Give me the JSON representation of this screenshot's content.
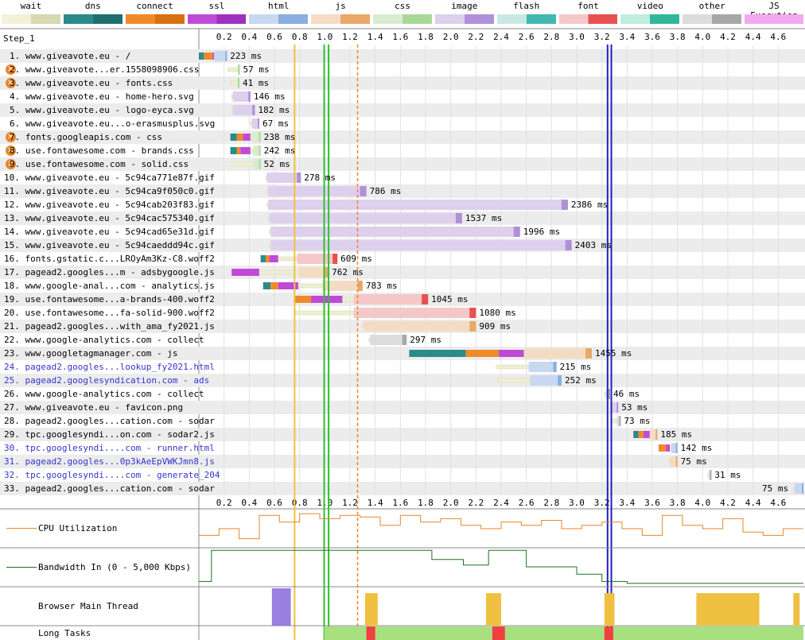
{
  "legend": [
    {
      "name": "wait",
      "label": "wait",
      "color": "#f2f2d8",
      "color2": "#d8d8b0"
    },
    {
      "name": "dns",
      "label": "dns",
      "color": "#2b8a8a",
      "color2": "#1f6f6f"
    },
    {
      "name": "connect",
      "label": "connect",
      "color": "#f08a28",
      "color2": "#d86f10"
    },
    {
      "name": "ssl",
      "label": "ssl",
      "color": "#c04ad8",
      "color2": "#a030c0"
    },
    {
      "name": "html",
      "label": "html",
      "color": "#c8d8f0",
      "color2": "#8aaee0"
    },
    {
      "name": "js",
      "label": "js",
      "color": "#f4dcc4",
      "color2": "#e8a868"
    },
    {
      "name": "css",
      "label": "css",
      "color": "#d8ecd0",
      "color2": "#a8d898"
    },
    {
      "name": "image",
      "label": "image",
      "color": "#ddd0ec",
      "color2": "#b090d8"
    },
    {
      "name": "flash",
      "label": "flash",
      "color": "#c8e8e4",
      "color2": "#40b8b0"
    },
    {
      "name": "font",
      "label": "font",
      "color": "#f4c8c8",
      "color2": "#e85050"
    },
    {
      "name": "video",
      "label": "video",
      "color": "#c0ece0",
      "color2": "#30b898"
    },
    {
      "name": "other",
      "label": "other",
      "color": "#dcdcdc",
      "color2": "#a8a8a8"
    },
    {
      "name": "js-execution",
      "label": "JS Execution",
      "color": "#f4a8f0",
      "color2": "#f4a8f0"
    }
  ],
  "step_title": "Step_1",
  "axis_ticks": [
    "0.2",
    "0.4",
    "0.6",
    "0.8",
    "1.0",
    "1.2",
    "1.4",
    "1.6",
    "1.8",
    "2.0",
    "2.2",
    "2.4",
    "2.6",
    "2.8",
    "3.0",
    "3.2",
    "3.4",
    "3.6",
    "3.8",
    "4.0",
    "4.2",
    "4.4",
    "4.6"
  ],
  "axis_max_s": 4.8,
  "markers": [
    {
      "t": 0.76,
      "color": "#f0c040",
      "style": "solid"
    },
    {
      "t": 0.995,
      "color": "#30c030",
      "style": "solid"
    },
    {
      "t": 1.03,
      "color": "#30c030",
      "style": "solid"
    },
    {
      "t": 1.26,
      "color": "#e8862a",
      "style": "dashed"
    },
    {
      "t": 3.245,
      "color": "#2020c0",
      "style": "solid"
    },
    {
      "t": 3.275,
      "color": "#2020c0",
      "style": "solid"
    }
  ],
  "requests": [
    {
      "label": "1. www.giveavote.eu - /",
      "warn": false,
      "blue": false,
      "type": "html",
      "start": 0.0,
      "dns": 0.04,
      "connect": 0.07,
      "ssl": 0.09,
      "wait": 0.0,
      "dl_start": 0.12,
      "end": 0.223,
      "dur": "223 ms"
    },
    {
      "label": "2. www.giveavote...er.1558098906.css",
      "warn": true,
      "blue": false,
      "type": "css",
      "start": 0.23,
      "wait_end": 0.31,
      "dl_start": 0.31,
      "end": 0.325,
      "dur": "57 ms"
    },
    {
      "label": "3. www.giveavote.eu - fonts.css",
      "warn": true,
      "blue": false,
      "type": "css",
      "start": 0.25,
      "wait_end": 0.31,
      "dl_start": 0.31,
      "end": 0.322,
      "dur": "41 ms"
    },
    {
      "label": "4. www.giveavote.eu - home-hero.svg",
      "warn": false,
      "blue": false,
      "type": "image",
      "start": 0.26,
      "wait_end": 0.27,
      "dl_start": 0.27,
      "end": 0.41,
      "dur": "146 ms"
    },
    {
      "label": "5. www.giveavote.eu - logo-eyca.svg",
      "warn": false,
      "blue": false,
      "type": "image",
      "start": 0.26,
      "wait_end": 0.27,
      "dl_start": 0.27,
      "end": 0.445,
      "dur": "182 ms"
    },
    {
      "label": "6. www.giveavote.eu...o-erasmusplus.svg",
      "warn": false,
      "blue": false,
      "type": "image",
      "start": 0.41,
      "wait_end": 0.42,
      "dl_start": 0.42,
      "end": 0.48,
      "dur": "67 ms"
    },
    {
      "label": "7. fonts.googleapis.com - css",
      "warn": true,
      "blue": false,
      "type": "css",
      "start": 0.25,
      "dns": 0.05,
      "connect": 0.05,
      "ssl": 0.06,
      "wait_end": 0.42,
      "dl_start": 0.42,
      "end": 0.49,
      "dur": "238 ms"
    },
    {
      "label": "8. use.fontawesome.com - brands.css",
      "warn": true,
      "blue": false,
      "type": "css",
      "start": 0.25,
      "dns": 0.05,
      "connect": 0.03,
      "ssl": 0.08,
      "wait_end": 0.43,
      "dl_start": 0.43,
      "end": 0.49,
      "dur": "242 ms"
    },
    {
      "label": "9. use.fontawesome.com - solid.css",
      "warn": true,
      "blue": false,
      "type": "css",
      "start": 0.25,
      "wait_end": 0.43,
      "dl_start": 0.43,
      "end": 0.49,
      "dur": "52 ms"
    },
    {
      "label": "10. www.giveavote.eu - 5c94ca771e87f.gif",
      "warn": false,
      "blue": false,
      "type": "image",
      "start": 0.53,
      "wait_end": 0.54,
      "dl_start": 0.54,
      "end": 0.81,
      "dur": "278 ms"
    },
    {
      "label": "11. www.giveavote.eu - 5c94ca9f050c0.gif",
      "warn": false,
      "blue": false,
      "type": "image",
      "start": 0.54,
      "wait_end": 0.55,
      "dl_start": 0.55,
      "end": 1.33,
      "dur": "786 ms"
    },
    {
      "label": "12. www.giveavote.eu - 5c94cab203f83.gif",
      "warn": false,
      "blue": false,
      "type": "image",
      "start": 0.54,
      "wait_end": 0.55,
      "dl_start": 0.55,
      "end": 2.93,
      "dur": "2386 ms"
    },
    {
      "label": "13. www.giveavote.eu - 5c94cac575340.gif",
      "warn": false,
      "blue": false,
      "type": "image",
      "start": 0.55,
      "wait_end": 0.56,
      "dl_start": 0.56,
      "end": 2.09,
      "dur": "1537 ms"
    },
    {
      "label": "14. www.giveavote.eu - 5c94cad65e31d.gif",
      "warn": false,
      "blue": false,
      "type": "image",
      "start": 0.56,
      "wait_end": 0.57,
      "dl_start": 0.57,
      "end": 2.55,
      "dur": "1996 ms"
    },
    {
      "label": "15. www.giveavote.eu - 5c94caeddd94c.gif",
      "warn": false,
      "blue": false,
      "type": "image",
      "start": 0.56,
      "wait_end": 0.57,
      "dl_start": 0.57,
      "end": 2.96,
      "dur": "2403 ms"
    },
    {
      "label": "16. fonts.gstatic.c...LROyAm3Kz-C8.woff2",
      "warn": false,
      "blue": false,
      "type": "font",
      "start": 0.49,
      "dns": 0.04,
      "connect": 0.03,
      "ssl": 0.07,
      "wait_end": 0.78,
      "dl_start": 0.78,
      "end": 1.1,
      "dur": "609 ms"
    },
    {
      "label": "17. pagead2.googles...m - adsbygoogle.js",
      "warn": false,
      "blue": false,
      "type": "js",
      "start": 0.26,
      "dns": 0.0,
      "connect": 0.0,
      "ssl": 0.22,
      "wait_end": 0.8,
      "dl_start": 0.8,
      "end": 1.03,
      "dur": "762 ms"
    },
    {
      "label": "18. www.google-anal...com - analytics.js",
      "warn": false,
      "blue": false,
      "type": "js",
      "start": 0.51,
      "dns": 0.06,
      "connect": 0.06,
      "ssl": 0.16,
      "wait_end": 0.98,
      "dl_start": 0.98,
      "end": 1.3,
      "dur": "783 ms"
    },
    {
      "label": "19. use.fontawesome...a-brands-400.woff2",
      "warn": false,
      "blue": false,
      "type": "font",
      "start": 0.76,
      "dns": 0.0,
      "connect": 0.13,
      "ssl": 0.25,
      "wait_end": 1.23,
      "dl_start": 1.23,
      "end": 1.82,
      "dur": "1045 ms"
    },
    {
      "label": "20. use.fontawesome...fa-solid-900.woff2",
      "warn": false,
      "blue": false,
      "type": "font",
      "start": 0.76,
      "wait_end": 1.23,
      "dl_start": 1.23,
      "end": 2.2,
      "dur": "1080 ms"
    },
    {
      "label": "21. pagead2.googles...with_ama_fy2021.js",
      "warn": false,
      "blue": false,
      "type": "js",
      "start": 1.3,
      "wait_end": 1.31,
      "dl_start": 1.31,
      "end": 2.2,
      "dur": "909 ms"
    },
    {
      "label": "22. www.google-analytics.com - collect",
      "warn": false,
      "blue": false,
      "type": "other",
      "start": 1.35,
      "wait_end": 1.36,
      "dl_start": 1.36,
      "end": 1.65,
      "dur": "297 ms"
    },
    {
      "label": "23. www.googletagmanager.com - js",
      "warn": false,
      "blue": false,
      "type": "js",
      "start": 1.67,
      "dns": 0.45,
      "connect": 0.26,
      "ssl": 0.2,
      "wait_end": 2.58,
      "dl_start": 2.58,
      "end": 3.12,
      "dur": "1455 ms"
    },
    {
      "label": "24. pagead2.googles...lookup_fy2021.html",
      "warn": false,
      "blue": true,
      "type": "html",
      "start": 2.36,
      "wait_end": 2.62,
      "dl_start": 2.62,
      "end": 2.84,
      "dur": "215 ms"
    },
    {
      "label": "25. pagead2.googlesyndication.com - ads",
      "warn": false,
      "blue": true,
      "type": "html",
      "start": 2.37,
      "wait_end": 2.63,
      "dl_start": 2.63,
      "end": 2.88,
      "dur": "252 ms"
    },
    {
      "label": "26. www.google-analytics.com - collect",
      "warn": false,
      "blue": false,
      "type": "other",
      "start": 3.22,
      "wait_end": 3.23,
      "dl_start": 3.23,
      "end": 3.265,
      "dur": "46 ms"
    },
    {
      "label": "27. www.giveavote.eu - favicon.png",
      "warn": false,
      "blue": false,
      "type": "image",
      "start": 3.27,
      "wait_end": 3.28,
      "dl_start": 3.28,
      "end": 3.33,
      "dur": "53 ms"
    },
    {
      "label": "28. pagead2.googles...cation.com - sodar",
      "warn": false,
      "blue": false,
      "type": "other",
      "start": 3.27,
      "wait_end": 3.32,
      "dl_start": 3.32,
      "end": 3.35,
      "dur": "73 ms"
    },
    {
      "label": "29. tpc.googlesyndi...on.com - sodar2.js",
      "warn": false,
      "blue": false,
      "type": "js",
      "start": 3.45,
      "dns": 0.04,
      "connect": 0.04,
      "ssl": 0.05,
      "wait_end": 3.58,
      "dl_start": 3.58,
      "end": 3.64,
      "dur": "185 ms"
    },
    {
      "label": "30. tpc.googlesyndi....com - runner.html",
      "warn": false,
      "blue": true,
      "type": "html",
      "start": 3.65,
      "dns": 0.0,
      "connect": 0.06,
      "ssl": 0.03,
      "wait_end": 3.75,
      "dl_start": 3.75,
      "end": 3.8,
      "dur": "142 ms"
    },
    {
      "label": "31. pagead2.googles...0p3kAeEpVWKJmn8.js",
      "warn": false,
      "blue": true,
      "type": "js",
      "start": 3.73,
      "wait_end": 3.74,
      "dl_start": 3.74,
      "end": 3.8,
      "dur": "75 ms"
    },
    {
      "label": "32. tpc.googlesyndi....com - generate_204",
      "warn": false,
      "blue": true,
      "type": "other",
      "start": 4.04,
      "wait_end": 4.05,
      "dl_start": 4.05,
      "end": 4.07,
      "dur": "31 ms"
    },
    {
      "label": "33. pagead2.googles...cation.com - sodar",
      "warn": false,
      "blue": false,
      "type": "html",
      "start": 4.72,
      "wait_end": 4.73,
      "dl_start": 4.73,
      "end": 4.8,
      "dur": "75 ms"
    }
  ],
  "sections": {
    "cpu": "CPU Utilization",
    "bandwidth": "Bandwidth In (0 - 5,000 Kbps)",
    "main_thread": "Browser Main Thread",
    "long_tasks": "Long Tasks"
  },
  "colors": {
    "cpu_line": "#e8862a",
    "bw_line": "#207020",
    "long_task_ok": "#a8e080",
    "long_task_bad": "#f04040",
    "row_alt": "#ececec"
  }
}
